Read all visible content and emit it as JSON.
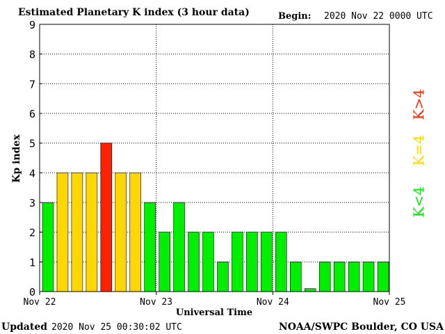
{
  "header": {
    "title": "Estimated Planetary K index (3 hour data)",
    "begin_label": "Begin:",
    "begin_value": "2020 Nov 22 0000 UTC"
  },
  "footer": {
    "updated_label": "Updated",
    "updated_value": "2020 Nov 25 00:30:02 UTC",
    "source": "NOAA/SWPC Boulder, CO USA"
  },
  "legend": {
    "low": {
      "label": "K<4",
      "color": "#00ee00"
    },
    "equal": {
      "label": "K=4",
      "color": "#ffd700"
    },
    "high": {
      "label": "K>4",
      "color": "#ff2200"
    }
  },
  "chart_data": {
    "type": "bar",
    "title": "Estimated Planetary K index (3 hour data)",
    "xlabel": "Universal Time",
    "ylabel": "Kp index",
    "ylim": [
      0,
      9
    ],
    "yticks": [
      "0",
      "1",
      "2",
      "3",
      "4",
      "5",
      "6",
      "7",
      "8",
      "9"
    ],
    "xticks": [
      "Nov 22",
      "Nov 23",
      "Nov 24",
      "Nov 25"
    ],
    "grid": true,
    "values": [
      3,
      4,
      4,
      4,
      5,
      4,
      4,
      3,
      2,
      3,
      2,
      2,
      1,
      2,
      2,
      2,
      2,
      1,
      0.1,
      1,
      1,
      1,
      1,
      1
    ],
    "colors": {
      "low": "#00ee00",
      "equal": "#ffd700",
      "high": "#ff2200"
    }
  }
}
